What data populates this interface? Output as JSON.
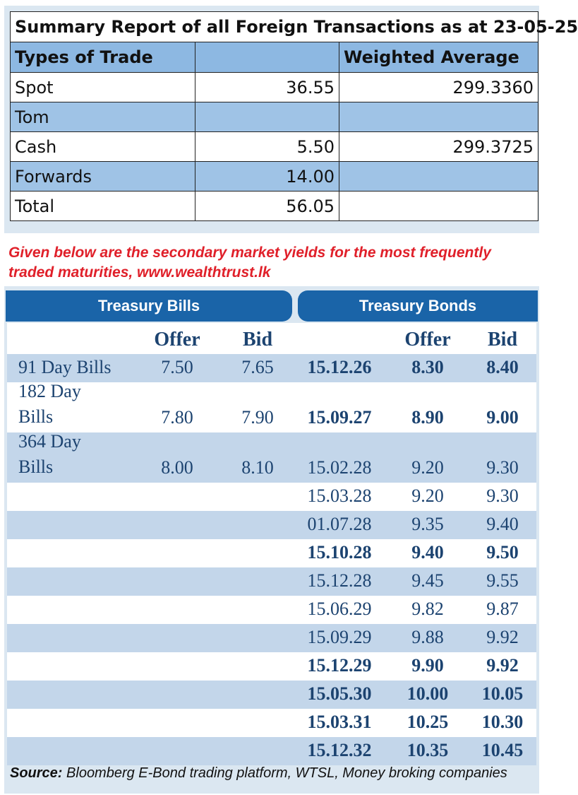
{
  "summary": {
    "title": "Summary Report of all Foreign Transactions as at 23-05-25",
    "header": {
      "type": "Types of Trade",
      "amount": "",
      "average": "Weighted Average"
    },
    "rows": [
      {
        "type": "Spot",
        "amount": "36.55",
        "average": "299.3360"
      },
      {
        "type": "Tom",
        "amount": "",
        "average": ""
      },
      {
        "type": "Cash",
        "amount": "5.50",
        "average": "299.3725"
      },
      {
        "type": "Forwards",
        "amount": "14.00",
        "average": ""
      },
      {
        "type": "Total",
        "amount": "56.05",
        "average": ""
      }
    ]
  },
  "caption": "Given below are the secondary market yields for the most frequently traded maturities, www.wealthtrust.lk",
  "bills_tab": "Treasury Bills",
  "bonds_tab": "Treasury Bonds",
  "col_headers": {
    "bills_offer": "Offer",
    "bills_bid": "Bid",
    "bonds_offer": "Offer",
    "bonds_bid": "Bid"
  },
  "bills": [
    {
      "line1": "91 Day Bills",
      "line2": "",
      "offer": "7.50",
      "bid": "7.65"
    },
    {
      "line1": "182 Day",
      "line2": "Bills",
      "offer": "7.80",
      "bid": "7.90"
    },
    {
      "line1": "364 Day",
      "line2": "Bills",
      "offer": "8.00",
      "bid": "8.10"
    }
  ],
  "bonds": [
    {
      "maturity": "15.12.26",
      "offer": "8.30",
      "bid": "8.40",
      "bold": true
    },
    {
      "maturity": "15.09.27",
      "offer": "8.90",
      "bid": "9.00",
      "bold": true
    },
    {
      "maturity": "15.02.28",
      "offer": "9.20",
      "bid": "9.30",
      "bold": false
    },
    {
      "maturity": "15.03.28",
      "offer": "9.20",
      "bid": "9.30",
      "bold": false
    },
    {
      "maturity": "01.07.28",
      "offer": "9.35",
      "bid": "9.40",
      "bold": false
    },
    {
      "maturity": "15.10.28",
      "offer": "9.40",
      "bid": "9.50",
      "bold": true
    },
    {
      "maturity": "15.12.28",
      "offer": "9.45",
      "bid": "9.55",
      "bold": false
    },
    {
      "maturity": "15.06.29",
      "offer": "9.82",
      "bid": "9.87",
      "bold": false
    },
    {
      "maturity": "15.09.29",
      "offer": "9.88",
      "bid": "9.92",
      "bold": false
    },
    {
      "maturity": "15.12.29",
      "offer": "9.90",
      "bid": "9.92",
      "bold": true
    },
    {
      "maturity": "15.05.30",
      "offer": "10.00",
      "bid": "10.05",
      "bold": true
    },
    {
      "maturity": "15.03.31",
      "offer": "10.25",
      "bid": "10.30",
      "bold": true
    },
    {
      "maturity": "15.12.32",
      "offer": "10.35",
      "bid": "10.45",
      "bold": true
    }
  ],
  "source": {
    "label": "Source:",
    "text": "Bloomberg E-Bond trading platform, WTSL, Money broking companies"
  },
  "colors": {
    "tab_blue": "#1a64a8",
    "row_blue": "#c3d6ea",
    "header_blue": "#8db8e2",
    "caption_red": "#e0202a",
    "text_navy": "#1c4370"
  }
}
